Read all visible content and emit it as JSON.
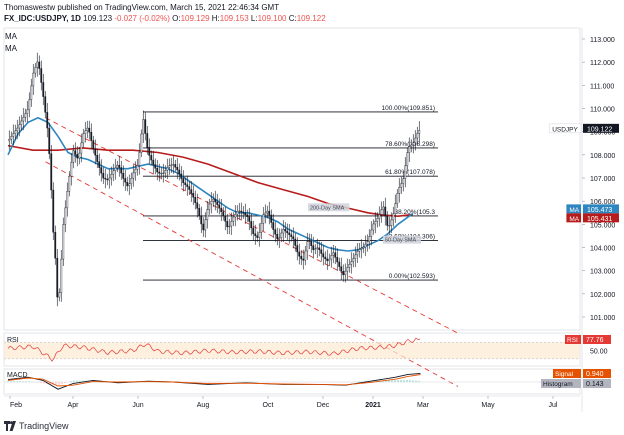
{
  "header": {
    "line1": "Thomaswestw published on TradingView.com, March 15, 2021 22:46:34 GMT",
    "symbol": "FX_IDC:USDJPY, 1D",
    "last": "109.123",
    "change": "-0.027 (-0.02%)",
    "o_label": "O:",
    "o": "109.129",
    "h_label": "H:",
    "h": "109.153",
    "l_label": "L:",
    "l": "109.100",
    "c_label": "C:",
    "c": "109.122"
  },
  "ma_labels": [
    "MA",
    "MA"
  ],
  "footer": {
    "brand": "TradingView"
  },
  "colors": {
    "ma200": "#b71c1c",
    "ma50": "#2e86c1",
    "fib": "#131722",
    "trend": "#e53935",
    "rsi": "#e53935",
    "macd": "#131722",
    "signal": "#e65100",
    "up": "#26a69a",
    "down": "#ef5350"
  },
  "chart_data": {
    "type": "line",
    "x": [
      "Feb",
      "Apr",
      "Jun",
      "Aug",
      "Oct",
      "Dec",
      "2021",
      "Mar",
      "May",
      "Jul"
    ],
    "ylim": [
      101,
      113
    ],
    "yticks": [
      "113.000",
      "112.000",
      "111.000",
      "110.000",
      "109.000",
      "108.000",
      "107.000",
      "106.000",
      "105.000",
      "104.000",
      "103.000",
      "102.000",
      "101.000"
    ],
    "price_path": [
      [
        0,
        108.6
      ],
      [
        4,
        109.2
      ],
      [
        8,
        110.0
      ],
      [
        10,
        111.5
      ],
      [
        12,
        112.1
      ],
      [
        14,
        110.6
      ],
      [
        16,
        108.9
      ],
      [
        17,
        107.2
      ],
      [
        18,
        104.8
      ],
      [
        19,
        103.4
      ],
      [
        20,
        101.2
      ],
      [
        21,
        102.9
      ],
      [
        22,
        104.9
      ],
      [
        24,
        106.7
      ],
      [
        26,
        108.2
      ],
      [
        28,
        107.8
      ],
      [
        30,
        108.9
      ],
      [
        32,
        109.2
      ],
      [
        34,
        108.3
      ],
      [
        36,
        107.6
      ],
      [
        38,
        107.0
      ],
      [
        40,
        106.9
      ],
      [
        42,
        107.3
      ],
      [
        44,
        107.6
      ],
      [
        46,
        107.0
      ],
      [
        48,
        106.6
      ],
      [
        50,
        107.2
      ],
      [
        52,
        107.6
      ],
      [
        54,
        109.6
      ],
      [
        56,
        108.1
      ],
      [
        58,
        107.6
      ],
      [
        60,
        107.2
      ],
      [
        62,
        107.2
      ],
      [
        64,
        107.5
      ],
      [
        66,
        107.6
      ],
      [
        68,
        107.3
      ],
      [
        70,
        106.8
      ],
      [
        72,
        106.6
      ],
      [
        74,
        106.2
      ],
      [
        76,
        105.6
      ],
      [
        78,
        104.7
      ],
      [
        80,
        105.8
      ],
      [
        82,
        106.1
      ],
      [
        84,
        105.8
      ],
      [
        86,
        105.4
      ],
      [
        88,
        104.8
      ],
      [
        90,
        105.3
      ],
      [
        92,
        105.6
      ],
      [
        94,
        105.5
      ],
      [
        96,
        105.3
      ],
      [
        98,
        104.6
      ],
      [
        100,
        104.4
      ],
      [
        102,
        105.4
      ],
      [
        104,
        105.6
      ],
      [
        106,
        104.8
      ],
      [
        108,
        104.3
      ],
      [
        110,
        104.8
      ],
      [
        112,
        104.6
      ],
      [
        114,
        104.4
      ],
      [
        116,
        103.7
      ],
      [
        118,
        103.4
      ],
      [
        120,
        104.4
      ],
      [
        122,
        103.9
      ],
      [
        124,
        104.0
      ],
      [
        126,
        103.6
      ],
      [
        128,
        103.4
      ],
      [
        130,
        103.8
      ],
      [
        132,
        103.3
      ],
      [
        134,
        102.8
      ],
      [
        136,
        103.2
      ],
      [
        138,
        103.5
      ],
      [
        140,
        103.9
      ],
      [
        142,
        104.0
      ],
      [
        144,
        104.3
      ],
      [
        146,
        105.0
      ],
      [
        148,
        105.3
      ],
      [
        150,
        105.8
      ],
      [
        152,
        104.8
      ],
      [
        154,
        105.4
      ],
      [
        156,
        106.5
      ],
      [
        158,
        106.9
      ],
      [
        160,
        108.3
      ],
      [
        162,
        108.5
      ],
      [
        164,
        109.0
      ],
      [
        165,
        109.12
      ]
    ],
    "ma200_path": [
      [
        0,
        108.4
      ],
      [
        10,
        108.2
      ],
      [
        20,
        108.2
      ],
      [
        30,
        108.3
      ],
      [
        40,
        108.2
      ],
      [
        50,
        108.2
      ],
      [
        60,
        108.1
      ],
      [
        70,
        107.9
      ],
      [
        80,
        107.6
      ],
      [
        90,
        107.2
      ],
      [
        100,
        106.8
      ],
      [
        110,
        106.5
      ],
      [
        120,
        106.2
      ],
      [
        128,
        105.9
      ],
      [
        136,
        105.7
      ],
      [
        144,
        105.5
      ],
      [
        150,
        105.4
      ],
      [
        156,
        105.35
      ],
      [
        162,
        105.43
      ]
    ],
    "ma50_path": [
      [
        0,
        108.0
      ],
      [
        4,
        108.9
      ],
      [
        8,
        109.4
      ],
      [
        12,
        109.6
      ],
      [
        16,
        109.4
      ],
      [
        20,
        108.8
      ],
      [
        24,
        108.1
      ],
      [
        28,
        107.9
      ],
      [
        32,
        107.8
      ],
      [
        36,
        107.6
      ],
      [
        40,
        107.4
      ],
      [
        44,
        107.4
      ],
      [
        48,
        107.4
      ],
      [
        52,
        107.5
      ],
      [
        56,
        107.6
      ],
      [
        60,
        107.5
      ],
      [
        64,
        107.4
      ],
      [
        68,
        107.2
      ],
      [
        72,
        106.9
      ],
      [
        76,
        106.6
      ],
      [
        80,
        106.3
      ],
      [
        84,
        106.0
      ],
      [
        88,
        105.7
      ],
      [
        92,
        105.5
      ],
      [
        96,
        105.5
      ],
      [
        100,
        105.4
      ],
      [
        104,
        105.3
      ],
      [
        108,
        105.1
      ],
      [
        112,
        104.8
      ],
      [
        116,
        104.6
      ],
      [
        120,
        104.4
      ],
      [
        124,
        104.2
      ],
      [
        128,
        104.0
      ],
      [
        132,
        103.9
      ],
      [
        136,
        103.85
      ],
      [
        140,
        103.9
      ],
      [
        144,
        104.1
      ],
      [
        148,
        104.3
      ],
      [
        152,
        104.6
      ],
      [
        156,
        105.0
      ],
      [
        162,
        105.47
      ]
    ],
    "fib_levels": [
      {
        "label": "100.00%(109.851)",
        "value": 109.851
      },
      {
        "label": "78.60%(108.298)",
        "value": 108.298
      },
      {
        "label": "61.80%(107.078)",
        "value": 107.078
      },
      {
        "label": "38.20%(105.3",
        "value": 105.364
      },
      {
        "label": "23.60%(104.306)",
        "value": 104.306
      },
      {
        "label": "0.00%(102.593)",
        "value": 102.593
      }
    ],
    "trendlines": [
      {
        "from": [
          15,
          109.6
        ],
        "to": [
          180,
          100.3
        ]
      },
      {
        "from": [
          15,
          107.7
        ],
        "to": [
          180,
          98.0
        ]
      }
    ],
    "annotations": [
      {
        "text": "200-Day SMA",
        "x": 120,
        "y": 105.65
      },
      {
        "text": "50-Day SMA",
        "x": 150,
        "y": 104.25
      }
    ],
    "price_tags": [
      {
        "label": "USDJPY",
        "value": "109.122",
        "y": 109.122,
        "kind": "price"
      },
      {
        "label": "MA",
        "value": "105.473",
        "y": 105.473,
        "kind": "ma50"
      },
      {
        "label": "MA",
        "value": "105.431",
        "y": 105.431,
        "kind": "ma200"
      }
    ],
    "rsi": {
      "label": "RSI",
      "value": "77.76",
      "tick": "50.00",
      "path": [
        [
          0,
          55
        ],
        [
          10,
          60
        ],
        [
          18,
          28
        ],
        [
          22,
          62
        ],
        [
          30,
          58
        ],
        [
          40,
          45
        ],
        [
          50,
          50
        ],
        [
          55,
          66
        ],
        [
          60,
          48
        ],
        [
          70,
          44
        ],
        [
          80,
          50
        ],
        [
          90,
          46
        ],
        [
          100,
          48
        ],
        [
          110,
          44
        ],
        [
          120,
          47
        ],
        [
          130,
          42
        ],
        [
          140,
          55
        ],
        [
          150,
          58
        ],
        [
          155,
          62
        ],
        [
          160,
          72
        ],
        [
          165,
          77.76
        ]
      ]
    },
    "macd": {
      "label": "MACD",
      "signal_label": "Signal",
      "signal_value": "0.940",
      "hist_label": "Histogram",
      "hist_value": "0.143",
      "macd_path": [
        [
          0,
          0.3
        ],
        [
          8,
          0.6
        ],
        [
          14,
          0.2
        ],
        [
          20,
          -0.9
        ],
        [
          26,
          -0.2
        ],
        [
          34,
          0.2
        ],
        [
          44,
          -0.1
        ],
        [
          56,
          0.1
        ],
        [
          66,
          0.0
        ],
        [
          80,
          -0.3
        ],
        [
          95,
          -0.1
        ],
        [
          110,
          -0.3
        ],
        [
          125,
          -0.3
        ],
        [
          135,
          -0.4
        ],
        [
          145,
          0.1
        ],
        [
          155,
          0.6
        ],
        [
          160,
          0.95
        ],
        [
          165,
          1.08
        ]
      ],
      "signal_path": [
        [
          0,
          0.2
        ],
        [
          8,
          0.5
        ],
        [
          14,
          0.35
        ],
        [
          20,
          -0.5
        ],
        [
          26,
          -0.4
        ],
        [
          34,
          0.05
        ],
        [
          44,
          0.0
        ],
        [
          56,
          0.05
        ],
        [
          66,
          0.0
        ],
        [
          80,
          -0.2
        ],
        [
          95,
          -0.15
        ],
        [
          110,
          -0.25
        ],
        [
          125,
          -0.3
        ],
        [
          135,
          -0.35
        ],
        [
          145,
          -0.05
        ],
        [
          155,
          0.35
        ],
        [
          160,
          0.7
        ],
        [
          165,
          0.94
        ]
      ]
    }
  }
}
